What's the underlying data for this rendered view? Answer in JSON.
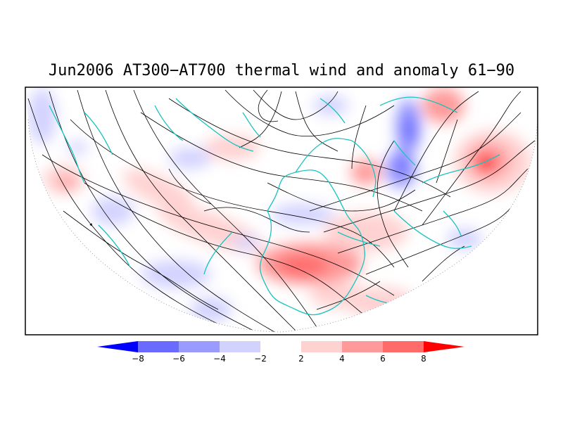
{
  "title": "Jun2006 AT300−AT700 thermal wind and anomaly 61−90",
  "colorbar": {
    "tick_labels": [
      "−8",
      "−6",
      "−4",
      "−2",
      "2",
      "4",
      "6",
      "8"
    ],
    "colors": [
      "#0000ff",
      "#6a6aff",
      "#9a9aff",
      "#d2d2ff",
      "#ffffff",
      "#ffd2d2",
      "#ff9a9a",
      "#ff6a6a",
      "#ff0000"
    ]
  },
  "colors": {
    "coastline": "#19c3be",
    "streamline": "#000000",
    "frame": "#000000",
    "background": "#ffffff"
  }
}
